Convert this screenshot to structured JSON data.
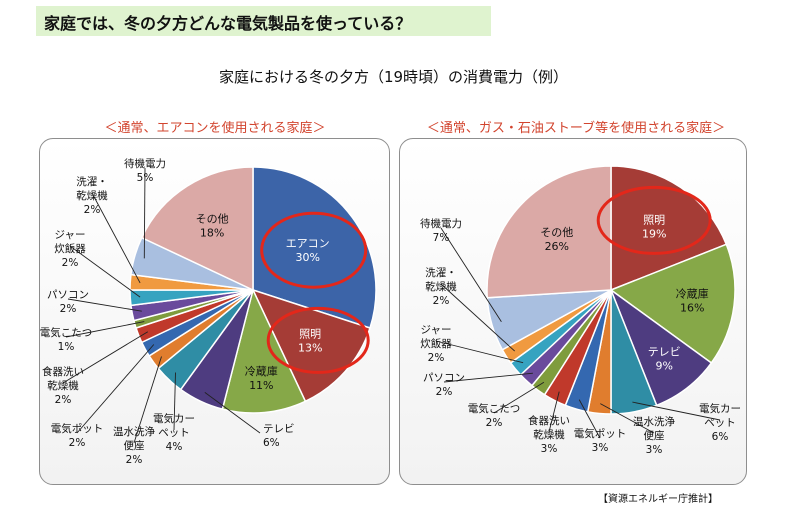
{
  "header": {
    "title": "家庭では、冬の夕方どんな電気製品を使っている？"
  },
  "page_title": "家庭における冬の夕方（19時頃）の消費電力（例）",
  "source_note": "【資源エネルギー庁推計】",
  "colors": {
    "header_bg": "#dff3cf",
    "highlight_circle": "#e3271a",
    "subtitle": "#d2442e"
  },
  "chart_data": [
    {
      "type": "pie",
      "title": "＜通常、エアコンを使用される家庭＞",
      "unit": "%",
      "slices": [
        {
          "name": "エアコン",
          "value": 30,
          "color": "#3c64a8"
        },
        {
          "name": "照明",
          "value": 13,
          "color": "#a53c36"
        },
        {
          "name": "冷蔵庫",
          "value": 11,
          "color": "#86a848"
        },
        {
          "name": "テレビ",
          "value": 6,
          "color": "#4e3c80"
        },
        {
          "name": "電気カーペット",
          "value": 4,
          "color": "#2f8da5"
        },
        {
          "name": "温水洗浄便座",
          "value": 2,
          "color": "#e07d2e"
        },
        {
          "name": "電気ポット",
          "value": 2,
          "color": "#3468b0"
        },
        {
          "name": "食器洗い乾燥機",
          "value": 2,
          "color": "#c0392b"
        },
        {
          "name": "電気こたつ",
          "value": 1,
          "color": "#7f9c3d"
        },
        {
          "name": "パソコン",
          "value": 2,
          "color": "#6a4a9c"
        },
        {
          "name": "ジャー炊飯器",
          "value": 2,
          "color": "#36a3c0"
        },
        {
          "name": "洗濯・乾燥機",
          "value": 2,
          "color": "#f09a40"
        },
        {
          "name": "待機電力",
          "value": 5,
          "color": "#a9bfe0"
        },
        {
          "name": "その他",
          "value": 18,
          "color": "#dba9a6"
        }
      ],
      "labels": [
        {
          "name_lines": [
            "エアコン"
          ],
          "value_text": "30%"
        },
        {
          "name_lines": [
            "照明"
          ],
          "value_text": "13%"
        },
        {
          "name_lines": [
            "冷蔵庫"
          ],
          "value_text": "11%"
        },
        {
          "name_lines": [
            "テレビ"
          ],
          "value_text": "6%"
        },
        {
          "name_lines": [
            "電気カー",
            "ペット"
          ],
          "value_text": "4%"
        },
        {
          "name_lines": [
            "温水洗浄",
            "便座"
          ],
          "value_text": "2%"
        },
        {
          "name_lines": [
            "電気ポット"
          ],
          "value_text": "2%"
        },
        {
          "name_lines": [
            "食器洗い",
            "乾燥機"
          ],
          "value_text": "2%"
        },
        {
          "name_lines": [
            "電気こたつ"
          ],
          "value_text": "1%"
        },
        {
          "name_lines": [
            "パソコン"
          ],
          "value_text": "2%"
        },
        {
          "name_lines": [
            "ジャー",
            "炊飯器"
          ],
          "value_text": "2%"
        },
        {
          "name_lines": [
            "洗濯・",
            "乾燥機"
          ],
          "value_text": "2%"
        },
        {
          "name_lines": [
            "待機電力"
          ],
          "value_text": "5%"
        },
        {
          "name_lines": [
            "その他"
          ],
          "value_text": "18%"
        }
      ],
      "highlighted": [
        "エアコン",
        "照明"
      ]
    },
    {
      "type": "pie",
      "title": "＜通常、ガス・石油ストーブ等を使用される家庭＞",
      "unit": "%",
      "slices": [
        {
          "name": "照明",
          "value": 19,
          "color": "#a53c36"
        },
        {
          "name": "冷蔵庫",
          "value": 16,
          "color": "#86a848"
        },
        {
          "name": "テレビ",
          "value": 9,
          "color": "#4e3c80"
        },
        {
          "name": "電気カーペット",
          "value": 6,
          "color": "#2f8da5"
        },
        {
          "name": "温水洗浄便座",
          "value": 3,
          "color": "#e07d2e"
        },
        {
          "name": "電気ポット",
          "value": 3,
          "color": "#3468b0"
        },
        {
          "name": "食器洗い乾燥機",
          "value": 3,
          "color": "#c0392b"
        },
        {
          "name": "電気こたつ",
          "value": 2,
          "color": "#7f9c3d"
        },
        {
          "name": "パソコン",
          "value": 2,
          "color": "#6a4a9c"
        },
        {
          "name": "ジャー炊飯器",
          "value": 2,
          "color": "#36a3c0"
        },
        {
          "name": "洗濯・乾燥機",
          "value": 2,
          "color": "#f09a40"
        },
        {
          "name": "待機電力",
          "value": 7,
          "color": "#a9bfe0"
        },
        {
          "name": "その他",
          "value": 26,
          "color": "#dba9a6"
        }
      ],
      "labels": [
        {
          "name_lines": [
            "照明"
          ],
          "value_text": "19%"
        },
        {
          "name_lines": [
            "冷蔵庫"
          ],
          "value_text": "16%"
        },
        {
          "name_lines": [
            "テレビ"
          ],
          "value_text": "9%"
        },
        {
          "name_lines": [
            "電気カー",
            "ペット"
          ],
          "value_text": "6%"
        },
        {
          "name_lines": [
            "温水洗浄",
            "便座"
          ],
          "value_text": "3%"
        },
        {
          "name_lines": [
            "電気ポット"
          ],
          "value_text": "3%"
        },
        {
          "name_lines": [
            "食器洗い",
            "乾燥機"
          ],
          "value_text": "3%"
        },
        {
          "name_lines": [
            "電気こたつ"
          ],
          "value_text": "2%"
        },
        {
          "name_lines": [
            "パソコン"
          ],
          "value_text": "2%"
        },
        {
          "name_lines": [
            "ジャー",
            "炊飯器"
          ],
          "value_text": "2%"
        },
        {
          "name_lines": [
            "洗濯・",
            "乾燥機"
          ],
          "value_text": "2%"
        },
        {
          "name_lines": [
            "待機電力"
          ],
          "value_text": "7%"
        },
        {
          "name_lines": [
            "その他"
          ],
          "value_text": "26%"
        }
      ],
      "highlighted": [
        "照明"
      ]
    }
  ]
}
